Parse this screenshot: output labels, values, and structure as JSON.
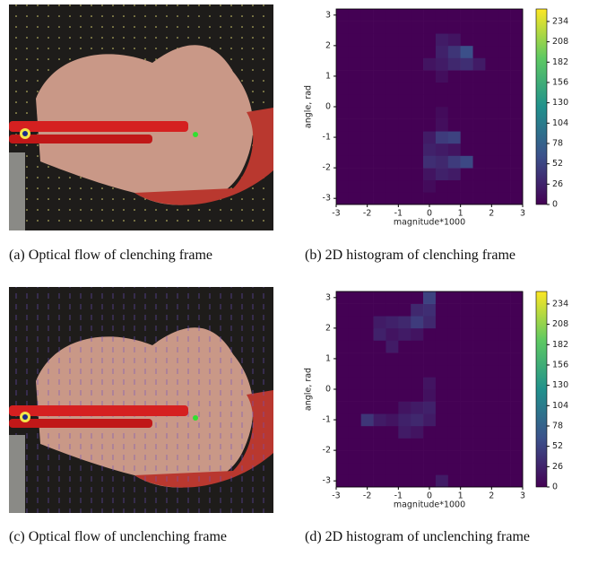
{
  "captions": [
    "(a) Optical flow of clenching frame",
    "(b) 2D histogram of clenching frame",
    "(c) Optical flow of unclenching frame",
    "(d) 2D histogram of unclenching frame"
  ],
  "chart_data": [
    {
      "type": "hist2d",
      "xlabel": "magnitude*1000",
      "ylabel": "angle, rad",
      "xlim": [
        -3,
        3
      ],
      "ylim": [
        -3.2,
        3.2
      ],
      "xticks": [
        -3,
        -2,
        -1,
        0,
        1,
        2,
        3
      ],
      "yticks": [
        -3,
        -2,
        -1,
        0,
        1,
        2,
        3
      ],
      "xbins": [
        -3,
        -2.6,
        -2.2,
        -1.8,
        -1.4,
        -1,
        -0.6,
        -0.2,
        0.2,
        0.6,
        1,
        1.4,
        1.8,
        2.2,
        2.6,
        3
      ],
      "ybins": [
        -3.2,
        -2.8,
        -2.4,
        -2,
        -1.6,
        -1.2,
        -0.8,
        -0.4,
        0,
        0.4,
        0.8,
        1.2,
        1.6,
        2,
        2.4,
        2.8,
        3.2
      ],
      "counts": [
        [
          0,
          0,
          0,
          0,
          0,
          0,
          0,
          0,
          0,
          0,
          0,
          0,
          0,
          0,
          0
        ],
        [
          0,
          0,
          0,
          0,
          0,
          0,
          0,
          8,
          0,
          0,
          0,
          0,
          0,
          0,
          0
        ],
        [
          0,
          0,
          0,
          0,
          0,
          0,
          0,
          15,
          25,
          20,
          0,
          0,
          0,
          0,
          0
        ],
        [
          0,
          0,
          0,
          0,
          0,
          0,
          0,
          35,
          30,
          45,
          55,
          0,
          0,
          0,
          0
        ],
        [
          0,
          0,
          0,
          0,
          0,
          0,
          0,
          25,
          20,
          15,
          0,
          0,
          0,
          0,
          0
        ],
        [
          0,
          0,
          0,
          0,
          0,
          0,
          0,
          20,
          45,
          50,
          0,
          0,
          0,
          0,
          0
        ],
        [
          0,
          0,
          0,
          0,
          0,
          0,
          0,
          0,
          10,
          0,
          0,
          0,
          0,
          0,
          0
        ],
        [
          0,
          0,
          0,
          0,
          0,
          0,
          0,
          0,
          8,
          0,
          0,
          0,
          0,
          0,
          0
        ],
        [
          0,
          0,
          0,
          0,
          0,
          0,
          0,
          0,
          0,
          0,
          0,
          0,
          0,
          0,
          0
        ],
        [
          0,
          0,
          0,
          0,
          0,
          0,
          0,
          0,
          0,
          0,
          0,
          0,
          0,
          0,
          0
        ],
        [
          0,
          0,
          0,
          0,
          0,
          0,
          0,
          0,
          10,
          0,
          0,
          0,
          0,
          0,
          0
        ],
        [
          0,
          0,
          0,
          0,
          0,
          0,
          0,
          15,
          20,
          30,
          35,
          20,
          0,
          0,
          0
        ],
        [
          0,
          0,
          0,
          0,
          0,
          0,
          0,
          0,
          25,
          40,
          60,
          0,
          0,
          0,
          0
        ],
        [
          0,
          0,
          0,
          0,
          0,
          0,
          0,
          0,
          20,
          15,
          0,
          0,
          0,
          0,
          0
        ],
        [
          0,
          0,
          0,
          0,
          0,
          0,
          0,
          0,
          0,
          0,
          0,
          0,
          0,
          0,
          0
        ],
        [
          0,
          0,
          0,
          0,
          0,
          0,
          0,
          0,
          0,
          0,
          0,
          0,
          0,
          0,
          0
        ]
      ],
      "colorbar": {
        "lim": [
          0,
          250
        ],
        "ticks": [
          0,
          26,
          52,
          78,
          104,
          130,
          156,
          182,
          208,
          234
        ]
      }
    },
    {
      "type": "hist2d",
      "xlabel": "magnitude*1000",
      "ylabel": "angle, rad",
      "xlim": [
        -3,
        3
      ],
      "ylim": [
        -3.2,
        3.2
      ],
      "xticks": [
        -3,
        -2,
        -1,
        0,
        1,
        2,
        3
      ],
      "yticks": [
        -3,
        -2,
        -1,
        0,
        1,
        2,
        3
      ],
      "xbins": [
        -3,
        -2.6,
        -2.2,
        -1.8,
        -1.4,
        -1,
        -0.6,
        -0.2,
        0.2,
        0.6,
        1,
        1.4,
        1.8,
        2.2,
        2.6,
        3
      ],
      "ybins": [
        -3.2,
        -2.8,
        -2.4,
        -2,
        -1.6,
        -1.2,
        -0.8,
        -0.4,
        0,
        0.4,
        0.8,
        1.2,
        1.6,
        2,
        2.4,
        2.8,
        3.2
      ],
      "counts": [
        [
          0,
          0,
          0,
          0,
          0,
          0,
          0,
          0,
          20,
          0,
          0,
          0,
          0,
          0,
          0
        ],
        [
          0,
          0,
          0,
          0,
          0,
          0,
          0,
          0,
          0,
          0,
          0,
          0,
          0,
          0,
          0
        ],
        [
          0,
          0,
          0,
          0,
          0,
          0,
          0,
          0,
          0,
          0,
          0,
          0,
          0,
          0,
          0
        ],
        [
          0,
          0,
          0,
          0,
          0,
          0,
          0,
          0,
          0,
          0,
          0,
          0,
          0,
          0,
          0
        ],
        [
          0,
          0,
          0,
          0,
          0,
          20,
          15,
          0,
          0,
          0,
          0,
          0,
          0,
          0,
          0
        ],
        [
          0,
          0,
          40,
          20,
          15,
          25,
          30,
          20,
          0,
          0,
          0,
          0,
          0,
          0,
          0
        ],
        [
          0,
          0,
          0,
          0,
          0,
          15,
          20,
          25,
          0,
          0,
          0,
          0,
          0,
          0,
          0
        ],
        [
          0,
          0,
          0,
          0,
          0,
          0,
          0,
          12,
          0,
          0,
          0,
          0,
          0,
          0,
          0
        ],
        [
          0,
          0,
          0,
          0,
          0,
          0,
          0,
          15,
          0,
          0,
          0,
          0,
          0,
          0,
          0
        ],
        [
          0,
          0,
          0,
          0,
          0,
          0,
          0,
          0,
          0,
          0,
          0,
          0,
          0,
          0,
          0
        ],
        [
          0,
          0,
          0,
          0,
          0,
          0,
          0,
          0,
          0,
          0,
          0,
          0,
          0,
          0,
          0
        ],
        [
          0,
          0,
          0,
          0,
          20,
          0,
          0,
          0,
          0,
          0,
          0,
          0,
          0,
          0,
          0
        ],
        [
          0,
          0,
          0,
          25,
          15,
          20,
          15,
          0,
          0,
          0,
          0,
          0,
          0,
          0,
          0
        ],
        [
          0,
          0,
          0,
          20,
          25,
          30,
          45,
          30,
          0,
          0,
          0,
          0,
          0,
          0,
          0
        ],
        [
          0,
          0,
          0,
          0,
          0,
          0,
          30,
          35,
          0,
          0,
          0,
          0,
          0,
          0,
          0
        ],
        [
          0,
          0,
          0,
          0,
          0,
          0,
          0,
          50,
          0,
          0,
          0,
          0,
          0,
          0,
          0
        ]
      ],
      "colorbar": {
        "lim": [
          0,
          250
        ],
        "ticks": [
          0,
          26,
          52,
          78,
          104,
          130,
          156,
          182,
          208,
          234
        ]
      }
    }
  ]
}
